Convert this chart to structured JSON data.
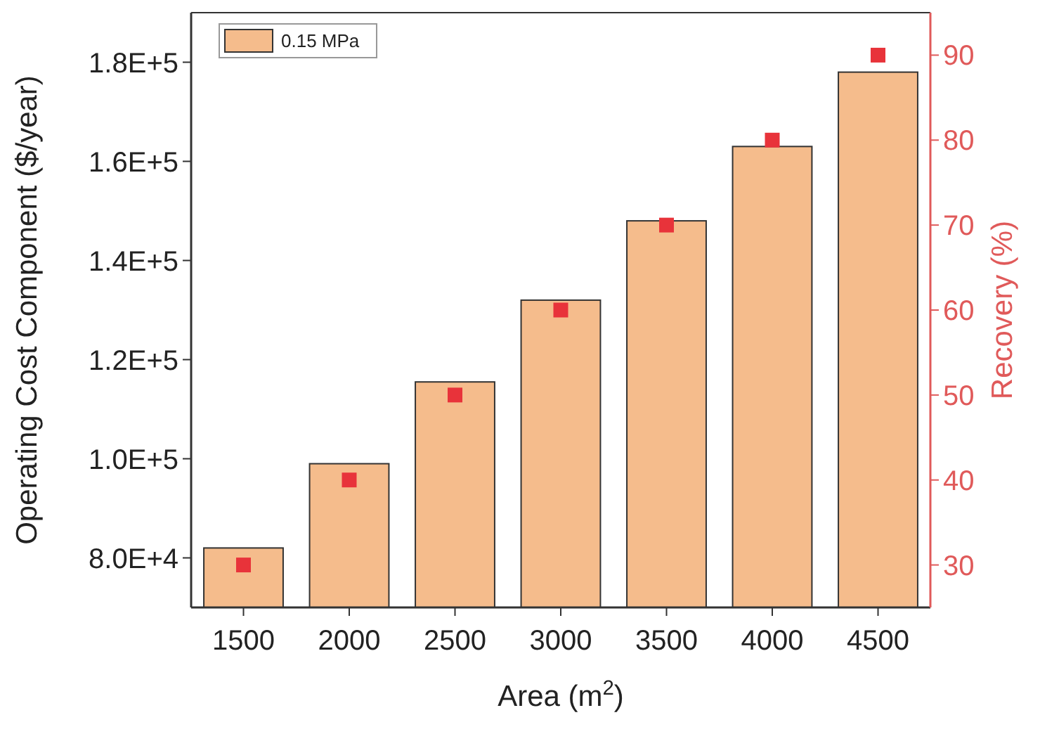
{
  "chart_data": {
    "type": "bar",
    "xlabel": "Area (m$^{2}$)",
    "ylabel": "Operating Cost Component ($/year)",
    "y2label": "Recovery (%)",
    "categories": [
      "1500",
      "2000",
      "2500",
      "3000",
      "3500",
      "4000",
      "4500"
    ],
    "series": [
      {
        "name": "0.15 MPa",
        "color": "#f5bc8c",
        "values": [
          82000,
          99000,
          115500,
          132000,
          148000,
          163000,
          178000
        ]
      },
      {
        "type": "scatter",
        "axis": "y2",
        "color": "#e8333a",
        "marker": "square",
        "values": [
          30,
          40,
          50,
          60,
          70,
          80,
          90
        ]
      }
    ],
    "ylim": [
      70000,
      190000
    ],
    "yticks": [
      {
        "value": 80000,
        "label": "8.0E+4"
      },
      {
        "value": 100000,
        "label": "1.0E+5"
      },
      {
        "value": 120000,
        "label": "1.2E+5"
      },
      {
        "value": 140000,
        "label": "1.4E+5"
      },
      {
        "value": 160000,
        "label": "1.6E+5"
      },
      {
        "value": 180000,
        "label": "1.8E+5"
      }
    ],
    "y2lim": [
      25,
      95
    ],
    "y2ticks": [
      30,
      40,
      50,
      60,
      70,
      80,
      90
    ],
    "grid": false,
    "legend": "top left"
  }
}
